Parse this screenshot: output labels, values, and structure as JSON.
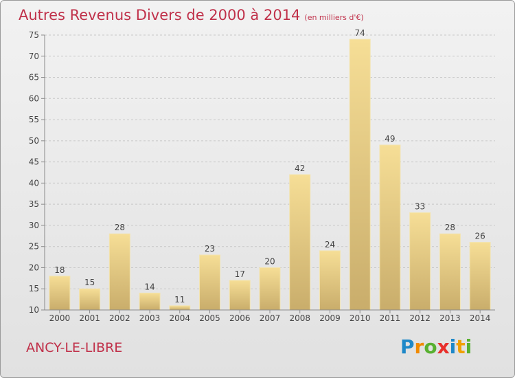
{
  "title": {
    "main": "Autres Revenus Divers de 2000 à 2014",
    "unit": "(en milliers d'€)"
  },
  "commune": "ANCY-LE-LIBRE",
  "logo": {
    "letters": [
      "P",
      "r",
      "o",
      "x",
      "i",
      "t",
      "i"
    ],
    "colors": [
      "#1e88c8",
      "#f08a00",
      "#58b030",
      "#e8302c",
      "#1e88c8",
      "#f0a000",
      "#58b030"
    ]
  },
  "colors": {
    "title": "#c0314a",
    "bar_light": "#f6de96",
    "bar_dark": "#c9ad6b",
    "axis": "#8a8a8a",
    "grid": "#c8c8c8"
  },
  "chart_data": {
    "type": "bar",
    "title": "Autres Revenus Divers de 2000 à 2014",
    "subtitle": "(en milliers d'€)",
    "categories": [
      "2000",
      "2001",
      "2002",
      "2003",
      "2004",
      "2005",
      "2006",
      "2007",
      "2008",
      "2009",
      "2010",
      "2011",
      "2012",
      "2013",
      "2014"
    ],
    "values": [
      18,
      15,
      28,
      14,
      11,
      23,
      17,
      20,
      42,
      24,
      74,
      49,
      33,
      28,
      26
    ],
    "ylim": [
      10,
      75
    ],
    "yticks": [
      10,
      15,
      20,
      25,
      30,
      35,
      40,
      45,
      50,
      55,
      60,
      65,
      70,
      75
    ],
    "grid": true,
    "grid_style": "dashed-horizontal",
    "data_labels": true
  }
}
